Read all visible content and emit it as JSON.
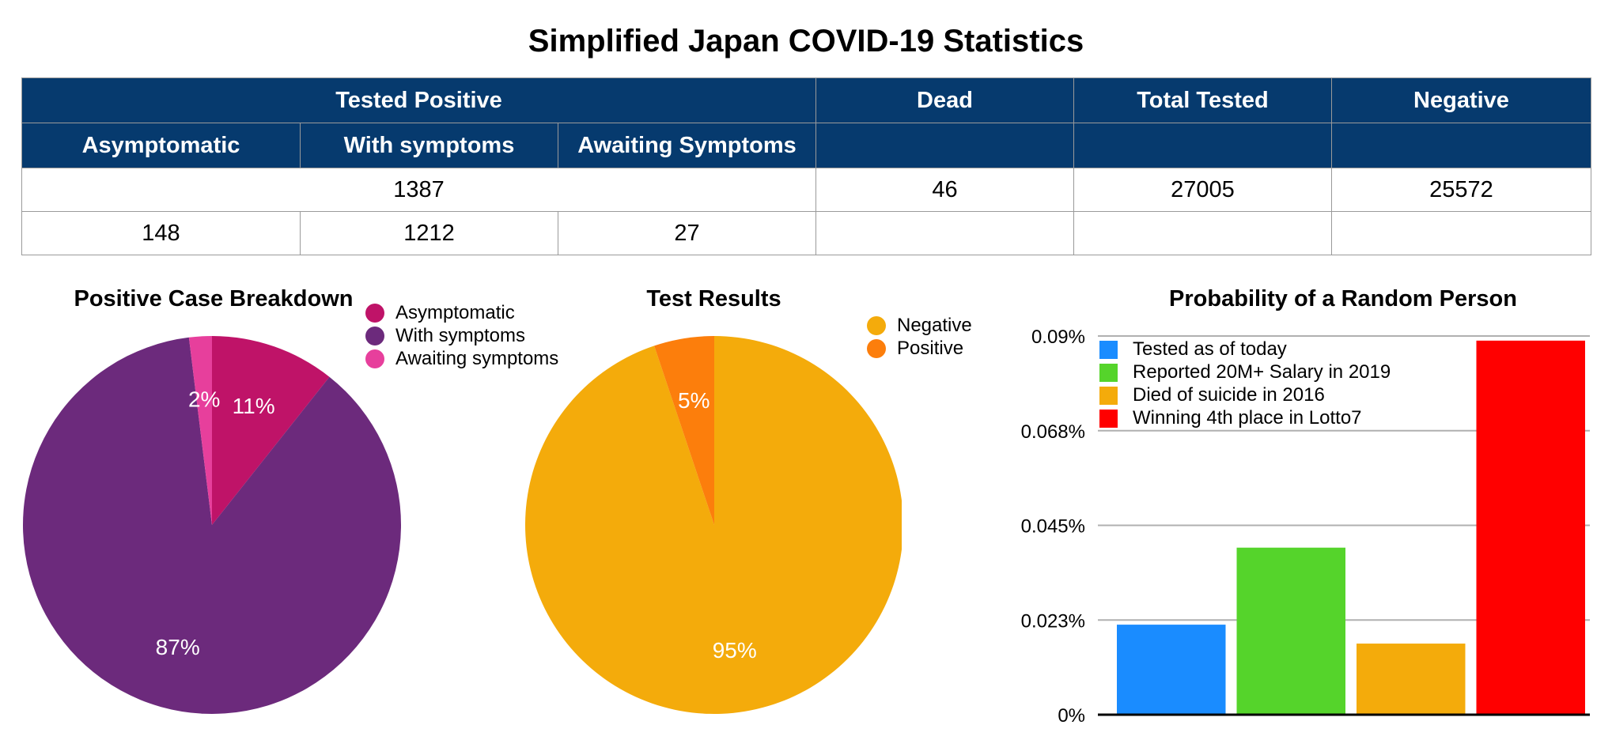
{
  "title": "Simplified Japan COVID-19 Statistics",
  "table": {
    "header_top": [
      "Tested Positive",
      "Dead",
      "Total Tested",
      "Negative"
    ],
    "header_sub": [
      "Asymptomatic",
      "With symptoms",
      "Awaiting Symptoms"
    ],
    "row_totals": [
      "1387",
      "46",
      "27005",
      "25572"
    ],
    "row_breakdown": [
      "148",
      "1212",
      "27"
    ]
  },
  "chart_data": [
    {
      "type": "pie",
      "title": "Positive Case Breakdown",
      "labels": [
        "Asymptomatic",
        "With symptoms",
        "Awaiting symptoms"
      ],
      "values": [
        148,
        1212,
        27
      ],
      "display_labels": [
        "11%",
        "87%",
        "2%"
      ],
      "colors": [
        "#bf1368",
        "#6c2a7c",
        "#e73f9c"
      ],
      "legend_position": "top-right"
    },
    {
      "type": "pie",
      "title": "Test Results",
      "labels": [
        "Negative",
        "Positive"
      ],
      "values": [
        25572,
        1387
      ],
      "display_labels": [
        "95%",
        "5%"
      ],
      "colors": [
        "#f4ab0b",
        "#fc7e0c"
      ],
      "legend_position": "top-right"
    },
    {
      "type": "bar",
      "title": "Probability of a Random Person",
      "categories": [
        "Tested as of today",
        "Reported 20M+ Salary in 2019",
        "Died of suicide in 2016",
        "Winning 4th place in Lotto7"
      ],
      "values": [
        0.0214,
        0.0397,
        0.0169,
        0.0889
      ],
      "colors": [
        "#1a8cff",
        "#55d42b",
        "#f4ab0b",
        "#ff0000"
      ],
      "yticks": [
        "0%",
        "0.023%",
        "0.045%",
        "0.068%",
        "0.09%"
      ],
      "ylim": [
        0,
        0.09
      ],
      "grid": true,
      "legend_position": "top-left"
    }
  ]
}
